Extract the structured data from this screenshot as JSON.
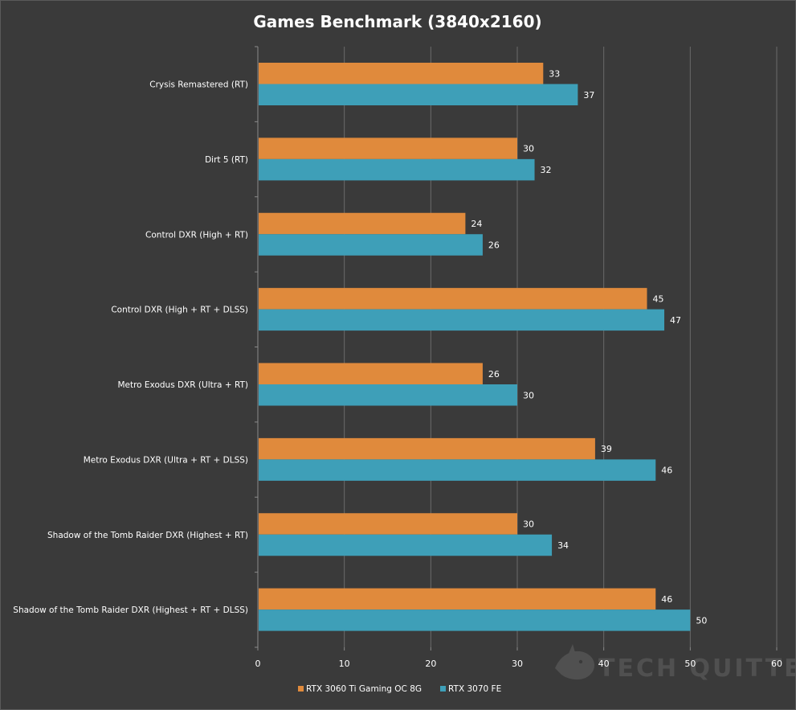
{
  "chart_data": {
    "type": "bar",
    "orientation": "horizontal",
    "title": "Games Benchmark (3840x2160)",
    "xlabel": "",
    "ylabel": "",
    "xlim": [
      0,
      60
    ],
    "x_ticks": [
      0,
      10,
      20,
      30,
      40,
      50,
      60
    ],
    "grid": "vertical",
    "legend_position": "bottom",
    "categories": [
      "Crysis Remastered  (RT)",
      "Dirt 5  (RT)",
      "Control DXR  (High + RT)",
      "Control DXR  (High + RT + DLSS)",
      "Metro Exodus  DXR (Ultra + RT)",
      "Metro Exodus  DXR (Ultra + RT + DLSS)",
      "Shadow of the Tomb  Raider DXR (Highest + RT)",
      "Shadow of the Tomb  Raider DXR (Highest + RT + DLSS)"
    ],
    "series": [
      {
        "name": "RTX 3060 Ti Gaming  OC 8G",
        "color": "#e08a3c",
        "values": [
          33,
          30,
          24,
          45,
          26,
          39,
          30,
          46
        ]
      },
      {
        "name": "RTX 3070 FE",
        "color": "#3e9fb8",
        "values": [
          37,
          32,
          26,
          47,
          30,
          46,
          34,
          50
        ]
      }
    ]
  },
  "colors": {
    "background": "#3a3a3a",
    "grid": "#6a6a6a",
    "text": "#ffffff"
  },
  "watermark": {
    "text": "TECH QUITTER",
    "icon": "shark-logo-icon"
  }
}
